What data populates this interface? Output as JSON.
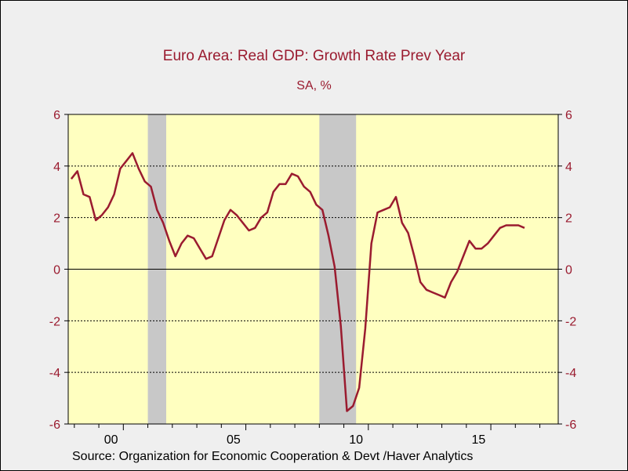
{
  "chart_data": {
    "type": "line",
    "title": "Euro Area: Real GDP: Growth Rate Prev Year",
    "subtitle": "SA, %",
    "source": "Source:  Organization for Economic Cooperation & Devt /Haver Analytics",
    "xlabel": "",
    "ylabel": "",
    "x_tick_labels": [
      {
        "label": "00",
        "year": 2000
      },
      {
        "label": "05",
        "year": 2005
      },
      {
        "label": "10",
        "year": 2010
      },
      {
        "label": "15",
        "year": 2015
      }
    ],
    "xlim": [
      1997.75,
      2017.75
    ],
    "ylim": [
      -6,
      6
    ],
    "y_ticks": [
      -6,
      -4,
      -2,
      0,
      2,
      4,
      6
    ],
    "y_tick_labels": [
      "-6",
      "-4",
      "-2",
      "0",
      "2",
      "4",
      "6"
    ],
    "grid": {
      "horizontal": "dashed",
      "zero_line": "solid"
    },
    "recessions": [
      {
        "start": "2001Q1",
        "end": "2001Q3"
      },
      {
        "start": "2008Q1",
        "end": "2009Q2"
      }
    ],
    "series": [
      {
        "x": [
          "1997Q4",
          "1998Q1",
          "1998Q2",
          "1998Q3",
          "1998Q4",
          "1999Q1",
          "1999Q2",
          "1999Q3",
          "1999Q4",
          "2000Q1",
          "2000Q2",
          "2000Q3",
          "2000Q4",
          "2001Q1",
          "2001Q2",
          "2001Q3",
          "2001Q4",
          "2002Q1",
          "2002Q2",
          "2002Q3",
          "2002Q4",
          "2003Q1",
          "2003Q2",
          "2003Q3",
          "2003Q4",
          "2004Q1",
          "2004Q2",
          "2004Q3",
          "2004Q4",
          "2005Q1",
          "2005Q2",
          "2005Q3",
          "2005Q4",
          "2006Q1",
          "2006Q2",
          "2006Q3",
          "2006Q4",
          "2007Q1",
          "2007Q2",
          "2007Q3",
          "2007Q4",
          "2008Q1",
          "2008Q2",
          "2008Q3",
          "2008Q4",
          "2009Q1",
          "2009Q2",
          "2009Q3",
          "2009Q4",
          "2010Q1",
          "2010Q2",
          "2010Q3",
          "2010Q4",
          "2011Q1",
          "2011Q2",
          "2011Q3",
          "2011Q4",
          "2012Q1",
          "2012Q2",
          "2012Q3",
          "2012Q4",
          "2013Q1",
          "2013Q2",
          "2013Q3",
          "2013Q4",
          "2014Q1",
          "2014Q2",
          "2014Q3",
          "2014Q4",
          "2015Q1",
          "2015Q2",
          "2015Q3",
          "2015Q4",
          "2016Q1",
          "2016Q2"
        ],
        "values": [
          3.5,
          3.8,
          2.9,
          2.8,
          1.9,
          2.1,
          2.4,
          2.9,
          3.9,
          4.2,
          4.5,
          3.9,
          3.4,
          3.2,
          2.3,
          1.8,
          1.1,
          0.5,
          1.0,
          1.3,
          1.2,
          0.8,
          0.4,
          0.5,
          1.2,
          1.9,
          2.3,
          2.1,
          1.8,
          1.5,
          1.6,
          2.0,
          2.2,
          3.0,
          3.3,
          3.3,
          3.7,
          3.6,
          3.2,
          3.0,
          2.5,
          2.3,
          1.3,
          0.1,
          -2.2,
          -5.5,
          -5.3,
          -4.6,
          -2.3,
          1.0,
          2.2,
          2.3,
          2.4,
          2.8,
          1.8,
          1.4,
          0.5,
          -0.5,
          -0.8,
          -0.9,
          -1.0,
          -1.1,
          -0.5,
          -0.1,
          0.5,
          1.1,
          0.8,
          0.8,
          1.0,
          1.3,
          1.6,
          1.7,
          1.7,
          1.7,
          1.6
        ],
        "color": "#9a1b2f"
      }
    ],
    "colors": {
      "plot_background": "#ffffc0",
      "recession_shade": "#c8c8c8",
      "axis_label": "#9a1b2f",
      "line": "#9a1b2f"
    }
  }
}
